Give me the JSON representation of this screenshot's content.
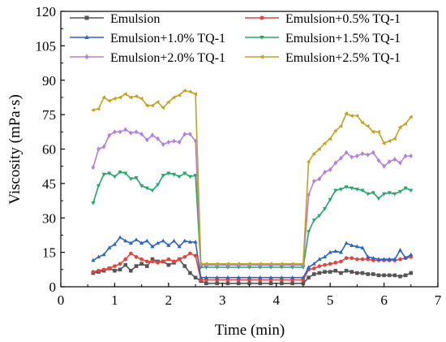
{
  "chart_data": {
    "type": "line",
    "xlabel": "Time (min)",
    "ylabel": "Viscosity (mPa·s)",
    "xlim": [
      0,
      7
    ],
    "ylim": [
      0,
      120
    ],
    "xticks": [
      0,
      1,
      2,
      3,
      4,
      5,
      6,
      7
    ],
    "yticks": [
      0,
      15,
      30,
      45,
      60,
      75,
      90,
      105,
      120
    ],
    "grid": false,
    "legend": "top, inside plot, 3 rows x 2 columns",
    "series": [
      {
        "name": "Emulsion",
        "color": "#555555",
        "marker": "square",
        "points": [
          [
            0.6,
            6
          ],
          [
            0.7,
            6.5
          ],
          [
            0.8,
            7
          ],
          [
            0.9,
            8
          ],
          [
            1.0,
            7
          ],
          [
            1.1,
            7.5
          ],
          [
            1.2,
            9.5
          ],
          [
            1.3,
            7
          ],
          [
            1.4,
            9
          ],
          [
            1.5,
            10
          ],
          [
            1.6,
            9
          ],
          [
            1.7,
            12
          ],
          [
            1.8,
            11
          ],
          [
            1.9,
            11
          ],
          [
            2.0,
            9.5
          ],
          [
            2.1,
            10.5
          ],
          [
            2.2,
            12
          ],
          [
            2.3,
            9
          ],
          [
            2.4,
            6
          ],
          [
            2.5,
            4
          ],
          [
            2.6,
            2.5
          ],
          [
            2.7,
            1.5
          ],
          [
            2.9,
            1.5
          ],
          [
            3.1,
            1.5
          ],
          [
            3.3,
            1.5
          ],
          [
            3.5,
            1.5
          ],
          [
            3.7,
            1.5
          ],
          [
            3.9,
            1.5
          ],
          [
            4.1,
            1.5
          ],
          [
            4.3,
            1.5
          ],
          [
            4.5,
            1.5
          ],
          [
            4.6,
            4
          ],
          [
            4.7,
            5.5
          ],
          [
            4.8,
            6
          ],
          [
            4.9,
            6.5
          ],
          [
            5.0,
            6.5
          ],
          [
            5.1,
            7
          ],
          [
            5.2,
            6
          ],
          [
            5.3,
            7
          ],
          [
            5.4,
            6.5
          ],
          [
            5.5,
            6
          ],
          [
            5.6,
            6
          ],
          [
            5.7,
            5.5
          ],
          [
            5.8,
            5.5
          ],
          [
            5.9,
            5
          ],
          [
            6.0,
            5
          ],
          [
            6.1,
            5
          ],
          [
            6.2,
            5
          ],
          [
            6.3,
            4.5
          ],
          [
            6.4,
            5
          ],
          [
            6.5,
            6
          ]
        ]
      },
      {
        "name": "Emulsion+0.5% TQ-1",
        "color": "#e8433a",
        "marker": "circle",
        "points": [
          [
            0.6,
            6.5
          ],
          [
            0.7,
            7
          ],
          [
            0.8,
            7.5
          ],
          [
            0.9,
            8
          ],
          [
            1.0,
            9
          ],
          [
            1.1,
            10
          ],
          [
            1.2,
            12
          ],
          [
            1.3,
            14.5
          ],
          [
            1.4,
            13
          ],
          [
            1.5,
            12
          ],
          [
            1.6,
            11
          ],
          [
            1.7,
            11
          ],
          [
            1.8,
            10.5
          ],
          [
            1.9,
            11
          ],
          [
            2.0,
            12
          ],
          [
            2.1,
            11
          ],
          [
            2.2,
            12
          ],
          [
            2.3,
            13
          ],
          [
            2.4,
            14.5
          ],
          [
            2.5,
            13.5
          ],
          [
            2.6,
            3
          ],
          [
            2.7,
            3
          ],
          [
            2.9,
            3
          ],
          [
            3.1,
            3
          ],
          [
            3.3,
            3
          ],
          [
            3.5,
            3
          ],
          [
            3.7,
            3
          ],
          [
            3.9,
            3
          ],
          [
            4.1,
            3
          ],
          [
            4.3,
            3
          ],
          [
            4.5,
            3
          ],
          [
            4.6,
            7.5
          ],
          [
            4.7,
            8
          ],
          [
            4.8,
            9
          ],
          [
            4.9,
            9.5
          ],
          [
            5.0,
            10
          ],
          [
            5.1,
            10.5
          ],
          [
            5.2,
            11
          ],
          [
            5.3,
            12.5
          ],
          [
            5.4,
            12.5
          ],
          [
            5.5,
            12
          ],
          [
            5.6,
            12
          ],
          [
            5.7,
            12
          ],
          [
            5.8,
            11.5
          ],
          [
            5.9,
            11.5
          ],
          [
            6.0,
            11.5
          ],
          [
            6.1,
            11.5
          ],
          [
            6.2,
            11.5
          ],
          [
            6.3,
            12
          ],
          [
            6.4,
            12.5
          ],
          [
            6.5,
            13
          ]
        ]
      },
      {
        "name": "Emulsion+1.0% TQ-1",
        "color": "#2a63c9",
        "marker": "triangle",
        "points": [
          [
            0.6,
            11.5
          ],
          [
            0.7,
            13
          ],
          [
            0.8,
            14
          ],
          [
            0.9,
            17
          ],
          [
            1.0,
            18.5
          ],
          [
            1.1,
            21.5
          ],
          [
            1.2,
            20
          ],
          [
            1.3,
            19
          ],
          [
            1.4,
            20.5
          ],
          [
            1.5,
            19
          ],
          [
            1.6,
            20
          ],
          [
            1.7,
            17.5
          ],
          [
            1.8,
            19
          ],
          [
            1.9,
            20
          ],
          [
            2.0,
            18
          ],
          [
            2.1,
            20
          ],
          [
            2.2,
            17.5
          ],
          [
            2.3,
            20
          ],
          [
            2.4,
            19.5
          ],
          [
            2.5,
            19.5
          ],
          [
            2.6,
            4
          ],
          [
            2.7,
            4
          ],
          [
            2.9,
            4
          ],
          [
            3.1,
            4
          ],
          [
            3.3,
            4
          ],
          [
            3.5,
            4
          ],
          [
            3.7,
            4
          ],
          [
            3.9,
            4
          ],
          [
            4.1,
            4
          ],
          [
            4.3,
            4
          ],
          [
            4.5,
            4
          ],
          [
            4.6,
            8.5
          ],
          [
            4.7,
            10
          ],
          [
            4.8,
            12
          ],
          [
            4.9,
            13
          ],
          [
            5.0,
            15
          ],
          [
            5.1,
            15.5
          ],
          [
            5.2,
            15
          ],
          [
            5.3,
            19
          ],
          [
            5.4,
            18
          ],
          [
            5.5,
            17.5
          ],
          [
            5.6,
            17
          ],
          [
            5.7,
            13
          ],
          [
            5.8,
            12.5
          ],
          [
            5.9,
            12
          ],
          [
            6.0,
            12
          ],
          [
            6.1,
            12
          ],
          [
            6.2,
            12
          ],
          [
            6.3,
            16
          ],
          [
            6.4,
            12.5
          ],
          [
            6.5,
            14
          ]
        ]
      },
      {
        "name": "Emulsion+1.5% TQ-1",
        "color": "#22a866",
        "marker": "triangle-down",
        "points": [
          [
            0.6,
            36.5
          ],
          [
            0.7,
            44
          ],
          [
            0.8,
            49
          ],
          [
            0.9,
            49.5
          ],
          [
            1.0,
            48
          ],
          [
            1.1,
            50
          ],
          [
            1.2,
            49.5
          ],
          [
            1.3,
            47
          ],
          [
            1.4,
            47.5
          ],
          [
            1.5,
            44
          ],
          [
            1.6,
            43
          ],
          [
            1.7,
            42
          ],
          [
            1.8,
            44.5
          ],
          [
            1.9,
            48.5
          ],
          [
            2.0,
            49.5
          ],
          [
            2.1,
            49
          ],
          [
            2.2,
            48
          ],
          [
            2.3,
            49.5
          ],
          [
            2.4,
            48
          ],
          [
            2.5,
            48.5
          ],
          [
            2.6,
            8.5
          ],
          [
            2.7,
            8.5
          ],
          [
            2.9,
            8.5
          ],
          [
            3.1,
            8.5
          ],
          [
            3.3,
            8.5
          ],
          [
            3.5,
            8.5
          ],
          [
            3.7,
            8.5
          ],
          [
            3.9,
            8.5
          ],
          [
            4.1,
            8.5
          ],
          [
            4.3,
            8.5
          ],
          [
            4.5,
            8.5
          ],
          [
            4.6,
            24
          ],
          [
            4.7,
            29
          ],
          [
            4.8,
            31
          ],
          [
            4.9,
            34
          ],
          [
            5.0,
            38
          ],
          [
            5.1,
            42
          ],
          [
            5.2,
            42.5
          ],
          [
            5.3,
            43.5
          ],
          [
            5.4,
            43
          ],
          [
            5.5,
            42.5
          ],
          [
            5.6,
            42
          ],
          [
            5.7,
            40.5
          ],
          [
            5.8,
            41
          ],
          [
            5.9,
            38.5
          ],
          [
            6.0,
            40.5
          ],
          [
            6.1,
            41
          ],
          [
            6.2,
            40.5
          ],
          [
            6.3,
            41.5
          ],
          [
            6.4,
            43
          ],
          [
            6.5,
            42
          ]
        ]
      },
      {
        "name": "Emulsion+2.0% TQ-1",
        "color": "#b57ee6",
        "marker": "diamond",
        "points": [
          [
            0.6,
            52
          ],
          [
            0.7,
            60
          ],
          [
            0.8,
            61
          ],
          [
            0.9,
            66
          ],
          [
            1.0,
            67.5
          ],
          [
            1.1,
            67.5
          ],
          [
            1.2,
            68.5
          ],
          [
            1.3,
            67
          ],
          [
            1.4,
            67.5
          ],
          [
            1.5,
            66.5
          ],
          [
            1.6,
            64
          ],
          [
            1.7,
            66
          ],
          [
            1.8,
            64.5
          ],
          [
            1.9,
            62
          ],
          [
            2.0,
            63
          ],
          [
            2.1,
            63.5
          ],
          [
            2.2,
            63
          ],
          [
            2.3,
            66.5
          ],
          [
            2.4,
            66.5
          ],
          [
            2.5,
            63.5
          ],
          [
            2.6,
            9.5
          ],
          [
            2.7,
            9.5
          ],
          [
            2.9,
            9.5
          ],
          [
            3.1,
            9.5
          ],
          [
            3.3,
            9.5
          ],
          [
            3.5,
            9.5
          ],
          [
            3.7,
            9.5
          ],
          [
            3.9,
            9.5
          ],
          [
            4.1,
            9.5
          ],
          [
            4.3,
            9.5
          ],
          [
            4.5,
            9.5
          ],
          [
            4.6,
            40
          ],
          [
            4.7,
            46
          ],
          [
            4.8,
            47
          ],
          [
            4.9,
            50
          ],
          [
            5.0,
            51
          ],
          [
            5.1,
            54
          ],
          [
            5.2,
            56
          ],
          [
            5.3,
            58.5
          ],
          [
            5.4,
            56.5
          ],
          [
            5.5,
            57
          ],
          [
            5.6,
            58
          ],
          [
            5.7,
            57.5
          ],
          [
            5.8,
            58.5
          ],
          [
            5.9,
            55
          ],
          [
            6.0,
            52.5
          ],
          [
            6.1,
            54.5
          ],
          [
            6.2,
            55.5
          ],
          [
            6.3,
            54
          ],
          [
            6.4,
            57
          ],
          [
            6.5,
            57
          ]
        ]
      },
      {
        "name": "Emulsion+2.5% TQ-1",
        "color": "#c4a21e",
        "marker": "triangle-left",
        "points": [
          [
            0.6,
            77
          ],
          [
            0.7,
            77.5
          ],
          [
            0.8,
            82.5
          ],
          [
            0.9,
            81
          ],
          [
            1.0,
            82
          ],
          [
            1.1,
            82.5
          ],
          [
            1.2,
            84
          ],
          [
            1.3,
            82.5
          ],
          [
            1.4,
            83
          ],
          [
            1.5,
            82
          ],
          [
            1.6,
            79
          ],
          [
            1.7,
            79
          ],
          [
            1.8,
            80.5
          ],
          [
            1.9,
            78
          ],
          [
            2.0,
            80.5
          ],
          [
            2.1,
            82.5
          ],
          [
            2.2,
            83.5
          ],
          [
            2.3,
            85.5
          ],
          [
            2.4,
            85
          ],
          [
            2.5,
            84
          ],
          [
            2.6,
            10
          ],
          [
            2.7,
            10
          ],
          [
            2.9,
            10
          ],
          [
            3.1,
            10
          ],
          [
            3.3,
            10
          ],
          [
            3.5,
            10
          ],
          [
            3.7,
            10
          ],
          [
            3.9,
            10
          ],
          [
            4.1,
            10
          ],
          [
            4.3,
            10
          ],
          [
            4.5,
            10
          ],
          [
            4.6,
            54.5
          ],
          [
            4.7,
            58
          ],
          [
            4.8,
            60
          ],
          [
            4.9,
            62.5
          ],
          [
            5.0,
            64.5
          ],
          [
            5.1,
            68
          ],
          [
            5.2,
            70
          ],
          [
            5.3,
            75.5
          ],
          [
            5.4,
            74.5
          ],
          [
            5.5,
            74.5
          ],
          [
            5.6,
            71.5
          ],
          [
            5.7,
            70
          ],
          [
            5.8,
            67.5
          ],
          [
            5.9,
            67.5
          ],
          [
            6.0,
            62.5
          ],
          [
            6.1,
            63.5
          ],
          [
            6.2,
            64.5
          ],
          [
            6.3,
            69.5
          ],
          [
            6.4,
            71
          ],
          [
            6.5,
            74
          ]
        ]
      }
    ]
  }
}
